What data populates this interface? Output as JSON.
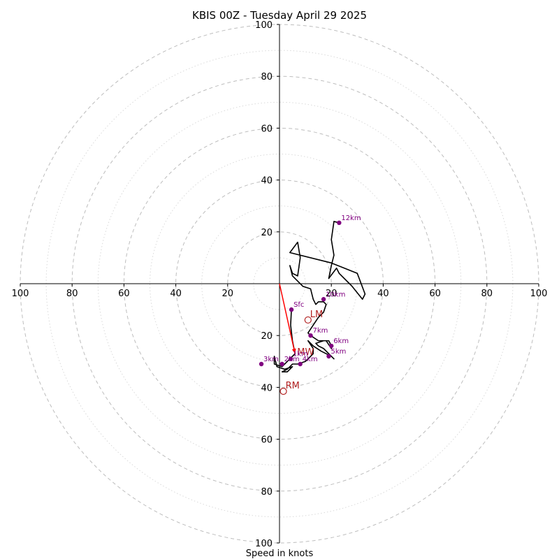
{
  "chart_data": {
    "type": "hodograph",
    "title": "KBIS 00Z - Tuesday April 29 2025",
    "xlabel": "Speed in knots",
    "range": [
      -100,
      100
    ],
    "ring_radii": [
      10,
      20,
      30,
      40,
      50,
      60,
      70,
      80,
      90,
      100
    ],
    "x_ticks": [
      {
        "value": -100,
        "label": "100"
      },
      {
        "value": -80,
        "label": "80"
      },
      {
        "value": -60,
        "label": "60"
      },
      {
        "value": -40,
        "label": "40"
      },
      {
        "value": -20,
        "label": "20"
      },
      {
        "value": 20,
        "label": "20"
      },
      {
        "value": 40,
        "label": "40"
      },
      {
        "value": 60,
        "label": "60"
      },
      {
        "value": 80,
        "label": "80"
      },
      {
        "value": 100,
        "label": "100"
      }
    ],
    "y_ticks": [
      {
        "value": 100,
        "label": "100"
      },
      {
        "value": 80,
        "label": "80"
      },
      {
        "value": 60,
        "label": "60"
      },
      {
        "value": 40,
        "label": "40"
      },
      {
        "value": 20,
        "label": "20"
      },
      {
        "value": -20,
        "label": "20"
      },
      {
        "value": -40,
        "label": "40"
      },
      {
        "value": -60,
        "label": "60"
      },
      {
        "value": -80,
        "label": "80"
      },
      {
        "value": -100,
        "label": "100"
      }
    ],
    "trace": [
      [
        4.6,
        -10
      ],
      [
        4.3,
        -16
      ],
      [
        5,
        -22
      ],
      [
        6,
        -27
      ],
      [
        3,
        -30
      ],
      [
        1,
        -32
      ],
      [
        -2,
        -31
      ],
      [
        -2,
        -28
      ],
      [
        -1,
        -32
      ],
      [
        2,
        -33
      ],
      [
        5,
        -32
      ],
      [
        3,
        -34
      ],
      [
        1,
        -34
      ],
      [
        3,
        -33
      ],
      [
        5,
        -31
      ],
      [
        7,
        -31
      ],
      [
        10,
        -30
      ],
      [
        13,
        -27
      ],
      [
        13,
        -25
      ],
      [
        11,
        -22
      ],
      [
        13,
        -24
      ],
      [
        16,
        -26
      ],
      [
        18,
        -27
      ],
      [
        20,
        -28
      ],
      [
        21,
        -29
      ],
      [
        19,
        -27
      ],
      [
        17,
        -25
      ],
      [
        15,
        -24
      ],
      [
        14,
        -23
      ],
      [
        17,
        -22
      ],
      [
        19,
        -22
      ],
      [
        20,
        -24
      ],
      [
        20,
        -25
      ],
      [
        18,
        -22
      ],
      [
        15,
        -22
      ],
      [
        12,
        -20
      ],
      [
        11,
        -19
      ],
      [
        13,
        -16
      ],
      [
        15,
        -13
      ],
      [
        17,
        -11
      ],
      [
        18,
        -8
      ],
      [
        17,
        -7
      ],
      [
        15,
        -7
      ],
      [
        14,
        -8
      ],
      [
        13,
        -6
      ],
      [
        12,
        -2
      ],
      [
        9,
        -1
      ],
      [
        5,
        3
      ],
      [
        4,
        7
      ],
      [
        5,
        4
      ],
      [
        7,
        3
      ],
      [
        8,
        10
      ],
      [
        7,
        16
      ],
      [
        4,
        12
      ],
      [
        20,
        8
      ],
      [
        30,
        4
      ],
      [
        33,
        -4
      ],
      [
        32,
        -6
      ],
      [
        28,
        -1
      ],
      [
        27,
        0
      ],
      [
        23,
        4
      ],
      [
        22,
        6
      ],
      [
        19,
        2
      ],
      [
        20,
        7
      ],
      [
        21,
        11
      ],
      [
        20,
        17
      ],
      [
        21,
        24
      ],
      [
        23,
        23.5
      ]
    ],
    "height_labels": [
      {
        "label": "Sfc",
        "u": 4.6,
        "v": -10
      },
      {
        "label": "1km",
        "u": 4.3,
        "v": -29
      },
      {
        "label": "2km",
        "u": 1,
        "v": -31
      },
      {
        "label": "3km",
        "u": -7,
        "v": -31
      },
      {
        "label": "4km",
        "u": 8,
        "v": -31
      },
      {
        "label": "5km",
        "u": 19,
        "v": -28
      },
      {
        "label": "6km",
        "u": 20,
        "v": -24
      },
      {
        "label": "7km",
        "u": 12,
        "v": -20
      },
      {
        "label": "10km",
        "u": 17,
        "v": -6
      },
      {
        "label": "12km",
        "u": 23,
        "v": 23.5
      }
    ],
    "storm_motion": {
      "mean_wind": {
        "label": "MW",
        "u": 6,
        "v": -27
      },
      "left_mover": {
        "label": "LM",
        "u": 11,
        "v": -14
      },
      "right_mover": {
        "label": "RM",
        "u": 1.5,
        "v": -41.5
      }
    },
    "colors": {
      "trace": "#000000",
      "height_marker": "#800080",
      "storm_vector": "#ff0000",
      "storm_marker": "#b22222",
      "ring_major": "#bdbdbd",
      "ring_minor": "#d9d9d9"
    }
  }
}
